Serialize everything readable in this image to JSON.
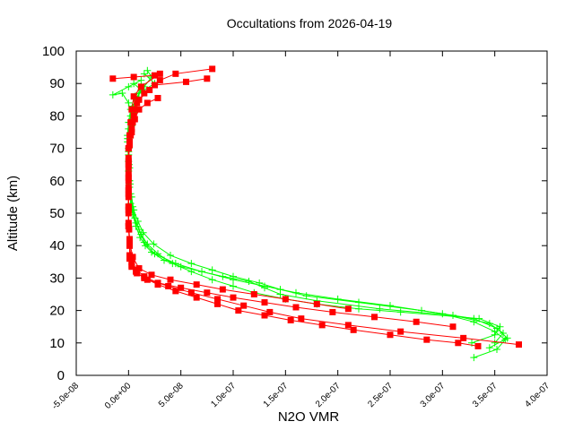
{
  "chart_data": {
    "type": "line",
    "title": "Occultations from 2026-04-19",
    "xlabel": "N2O VMR",
    "ylabel": "Altitude (km)",
    "xlim": [
      -5e-08,
      4e-07
    ],
    "ylim": [
      0,
      100
    ],
    "x_ticks": [
      -5e-08,
      0,
      5e-08,
      1e-07,
      1.5e-07,
      2e-07,
      2.5e-07,
      3e-07,
      3.5e-07,
      4e-07
    ],
    "x_tick_labels": [
      "-5.0e-08",
      "0.0e+00",
      "5.0e-08",
      "1.0e-07",
      "1.5e-07",
      "2.0e-07",
      "2.5e-07",
      "3.0e-07",
      "3.5e-07",
      "4.0e-07"
    ],
    "y_ticks": [
      0,
      10,
      20,
      30,
      40,
      50,
      60,
      70,
      80,
      90,
      100
    ],
    "y_tick_labels": [
      "0",
      "10",
      "20",
      "30",
      "40",
      "50",
      "60",
      "70",
      "80",
      "90",
      "100"
    ],
    "grid": false,
    "legend": "none",
    "series": [
      {
        "color": "#00ff00",
        "marker": "plus",
        "profiles": [
          [
            [
              3.3e-07,
              5.5
            ],
            [
              3.52e-07,
              8
            ],
            [
              3.6e-07,
              11
            ],
            [
              3.5e-07,
              13.5
            ],
            [
              3.3e-07,
              16.5
            ],
            [
              3e-07,
              19
            ],
            [
              2.5e-07,
              21.5
            ],
            [
              2e-07,
              23.5
            ],
            [
              1.6e-07,
              25.5
            ],
            [
              1.3e-07,
              27.5
            ],
            [
              1e-07,
              29.5
            ],
            [
              7e-08,
              32
            ],
            [
              4.5e-08,
              34.5
            ],
            [
              2.5e-08,
              37.5
            ],
            [
              1.5e-08,
              41
            ],
            [
              1e-08,
              45
            ],
            [
              6e-09,
              48.5
            ],
            [
              4e-09,
              52
            ],
            [
              2e-09,
              56
            ],
            [
              1e-09,
              60
            ],
            [
              5e-10,
              65
            ],
            [
              0,
              70
            ],
            [
              -1e-09,
              74
            ],
            [
              0,
              78
            ],
            [
              2e-09,
              82
            ],
            [
              6e-09,
              86
            ],
            [
              1.5e-08,
              89
            ],
            [
              2.2e-08,
              92
            ],
            [
              1.8e-08,
              94
            ]
          ],
          [
            [
              3.45e-07,
              8.5
            ],
            [
              3.62e-07,
              11.5
            ],
            [
              3.52e-07,
              14.5
            ],
            [
              3.3e-07,
              17.5
            ],
            [
              2.8e-07,
              20
            ],
            [
              2.2e-07,
              22.5
            ],
            [
              1.7e-07,
              24.5
            ],
            [
              1.45e-07,
              26.5
            ],
            [
              1.25e-07,
              28.5
            ],
            [
              1e-07,
              30.5
            ],
            [
              8e-08,
              32.5
            ],
            [
              6e-08,
              34.5
            ],
            [
              4e-08,
              37
            ],
            [
              2.4e-08,
              40.5
            ],
            [
              1.4e-08,
              44
            ],
            [
              9e-09,
              47.5
            ],
            [
              5e-09,
              51
            ],
            [
              3e-09,
              55
            ],
            [
              1.5e-09,
              59
            ],
            [
              1e-09,
              64
            ],
            [
              0,
              69
            ],
            [
              0,
              73
            ],
            [
              3e-09,
              77
            ],
            [
              5e-09,
              81
            ],
            [
              8e-09,
              85
            ],
            [
              1.2e-08,
              88
            ],
            [
              5e-09,
              90
            ]
          ],
          [
            [
              3.28e-07,
              10
            ],
            [
              3.5e-07,
              12.5
            ],
            [
              3.55e-07,
              15
            ],
            [
              3.35e-07,
              17.5
            ],
            [
              2.6e-07,
              19.5
            ],
            [
              2.2e-07,
              20.5
            ],
            [
              1.8e-07,
              22
            ],
            [
              1.5e-07,
              23.5
            ],
            [
              1.2e-07,
              25.5
            ],
            [
              1e-07,
              27.5
            ],
            [
              8e-08,
              29.5
            ],
            [
              6e-08,
              32
            ],
            [
              4.2e-08,
              34.5
            ],
            [
              2.8e-08,
              37.5
            ],
            [
              1.8e-08,
              40.5
            ],
            [
              1.2e-08,
              43.5
            ],
            [
              7e-09,
              47
            ],
            [
              4e-09,
              51
            ],
            [
              2e-09,
              55
            ],
            [
              1e-09,
              60
            ],
            [
              0,
              66
            ],
            [
              -1e-09,
              72
            ],
            [
              0,
              76
            ],
            [
              2e-09,
              80
            ],
            [
              0,
              84
            ],
            [
              -6e-09,
              87
            ],
            [
              -1.5e-08,
              86.5
            ],
            [
              0,
              89
            ],
            [
              1.2e-08,
              91
            ]
          ],
          [
            [
              3.5e-07,
              10
            ],
            [
              3.58e-07,
              13
            ],
            [
              3.45e-07,
              16
            ],
            [
              3.1e-07,
              18.5
            ],
            [
              2.4e-07,
              20.5
            ],
            [
              1.8e-07,
              23
            ],
            [
              1.45e-07,
              25
            ],
            [
              1.3e-07,
              27
            ],
            [
              1.15e-07,
              29
            ],
            [
              9e-08,
              30.5
            ],
            [
              7e-08,
              32
            ],
            [
              5e-08,
              33.5
            ],
            [
              3.4e-08,
              35.5
            ],
            [
              2.2e-08,
              38
            ],
            [
              1.6e-08,
              40
            ],
            [
              1.1e-08,
              42.5
            ],
            [
              7e-09,
              46
            ],
            [
              4e-09,
              49.5
            ],
            [
              2e-09,
              53
            ],
            [
              1e-09,
              58
            ],
            [
              0,
              63
            ],
            [
              0,
              68
            ],
            [
              -1e-09,
              73
            ],
            [
              1e-09,
              78
            ],
            [
              4e-09,
              83
            ],
            [
              1e-08,
              87
            ],
            [
              2.5e-08,
              90
            ],
            [
              1.5e-08,
              93
            ]
          ]
        ]
      },
      {
        "color": "#ff0000",
        "marker": "square",
        "profiles": [
          [
            [
              3.73e-07,
              9.5
            ],
            [
              3.2e-07,
              11.5
            ],
            [
              2.6e-07,
              13.5
            ],
            [
              2.1e-07,
              15.5
            ],
            [
              1.65e-07,
              17.5
            ],
            [
              1.35e-07,
              19.5
            ],
            [
              1.1e-07,
              21.5
            ],
            [
              8.5e-08,
              23.5
            ],
            [
              6e-08,
              25.5
            ],
            [
              3.8e-08,
              27.5
            ],
            [
              1.8e-08,
              29.5
            ],
            [
              8e-09,
              31.5
            ],
            [
              3e-09,
              33.5
            ],
            [
              1e-09,
              36
            ],
            [
              1e-09,
              40
            ],
            [
              5e-10,
              45
            ],
            [
              0,
              50
            ],
            [
              0,
              55
            ],
            [
              0,
              60
            ],
            [
              0,
              65
            ],
            [
              0,
              70
            ],
            [
              2e-09,
              74
            ],
            [
              4e-09,
              78
            ],
            [
              6e-09,
              82
            ],
            [
              1e-08,
              85
            ],
            [
              2e-08,
              88
            ],
            [
              3e-08,
              91
            ],
            [
              4.5e-08,
              93
            ],
            [
              8e-08,
              94.5
            ]
          ],
          [
            [
              3.34e-07,
              9
            ],
            [
              3.15e-07,
              10
            ],
            [
              2.85e-07,
              11
            ],
            [
              2.5e-07,
              12.5
            ],
            [
              2.15e-07,
              14
            ],
            [
              1.85e-07,
              15.5
            ],
            [
              1.55e-07,
              17
            ],
            [
              1.3e-07,
              18.5
            ],
            [
              1.05e-07,
              20
            ],
            [
              8.5e-08,
              22
            ],
            [
              6.5e-08,
              24
            ],
            [
              4.5e-08,
              26
            ],
            [
              2.8e-08,
              28
            ],
            [
              1.5e-08,
              30
            ],
            [
              7e-09,
              32
            ],
            [
              3e-09,
              34
            ],
            [
              1e-09,
              37
            ],
            [
              1e-09,
              42
            ],
            [
              0,
              47
            ],
            [
              0,
              52
            ],
            [
              0,
              57
            ],
            [
              0,
              62
            ],
            [
              0,
              67
            ],
            [
              1e-09,
              72
            ],
            [
              3e-09,
              76
            ],
            [
              5e-09,
              80
            ],
            [
              8e-09,
              84
            ],
            [
              1.5e-08,
              87
            ],
            [
              2.5e-08,
              89.5
            ],
            [
              5.5e-08,
              90.5
            ],
            [
              7.5e-08,
              91.5
            ]
          ],
          [
            [
              -1.5e-08,
              91.5
            ],
            [
              5e-09,
              92
            ],
            [
              2.5e-08,
              92.5
            ],
            [
              3e-08,
              93
            ],
            [
              1.2e-08,
              89
            ],
            [
              5e-09,
              86
            ],
            [
              3e-09,
              82
            ],
            [
              2e-09,
              78
            ],
            [
              1e-09,
              74
            ],
            [
              0,
              70
            ],
            [
              0,
              64
            ],
            [
              0,
              58
            ],
            [
              0,
              52
            ],
            [
              0,
              46
            ],
            [
              1e-09,
              40
            ],
            [
              3e-09,
              35
            ],
            [
              8e-09,
              32.5
            ],
            [
              1.5e-08,
              30.5
            ],
            [
              2.8e-08,
              28.5
            ],
            [
              5e-08,
              27
            ],
            [
              7.5e-08,
              25.5
            ],
            [
              1e-07,
              24
            ],
            [
              1.3e-07,
              22.5
            ],
            [
              1.6e-07,
              21
            ],
            [
              1.95e-07,
              19.5
            ],
            [
              2.35e-07,
              18
            ],
            [
              2.75e-07,
              16.5
            ],
            [
              3.1e-07,
              15
            ]
          ],
          [
            [
              2.8e-08,
              85.5
            ],
            [
              1.8e-08,
              84
            ],
            [
              1e-08,
              82
            ],
            [
              6e-09,
              79
            ],
            [
              3e-09,
              75
            ],
            [
              1e-09,
              71
            ],
            [
              0,
              66
            ],
            [
              0,
              61
            ],
            [
              0,
              56
            ],
            [
              0,
              51
            ],
            [
              0,
              46
            ],
            [
              1e-09,
              41
            ],
            [
              4e-09,
              36.5
            ],
            [
              1e-08,
              33
            ],
            [
              2.2e-08,
              31
            ],
            [
              4e-08,
              29.5
            ],
            [
              6.5e-08,
              28
            ],
            [
              9e-08,
              26.5
            ],
            [
              1.2e-07,
              25
            ],
            [
              1.5e-07,
              23.5
            ],
            [
              1.8e-07,
              22
            ],
            [
              2.1e-07,
              20.5
            ]
          ]
        ]
      }
    ]
  }
}
